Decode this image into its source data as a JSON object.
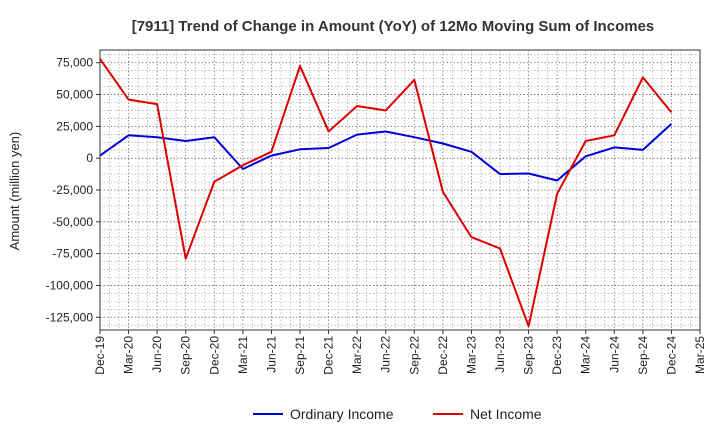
{
  "chart_data": {
    "type": "line",
    "title": "[7911]  Trend of Change in Amount (YoY) of 12Mo Moving Sum of Incomes",
    "xlabel": "",
    "ylabel": "Amount (million yen)",
    "ylim": [
      -135000,
      85000
    ],
    "yticks": [
      75000,
      50000,
      25000,
      0,
      -25000,
      -50000,
      -75000,
      -100000,
      -125000
    ],
    "ytick_labels": [
      "75,000",
      "50,000",
      "25,000",
      "0",
      "-25,000",
      "-50,000",
      "-75,000",
      "-100,000",
      "-125,000"
    ],
    "categories": [
      "Dec-19",
      "Mar-20",
      "Jun-20",
      "Sep-20",
      "Dec-20",
      "Mar-21",
      "Jun-21",
      "Sep-21",
      "Dec-21",
      "Mar-22",
      "Jun-22",
      "Sep-22",
      "Dec-22",
      "Mar-23",
      "Jun-23",
      "Sep-23",
      "Dec-23",
      "Mar-24",
      "Jun-24",
      "Sep-24",
      "Dec-24",
      "Mar-25"
    ],
    "grid": true,
    "legend_position": "bottom",
    "series": [
      {
        "name": "Ordinary Income",
        "color": "#0000dd",
        "values": [
          2000,
          18000,
          16500,
          13500,
          16500,
          -8500,
          2000,
          7000,
          8000,
          18500,
          21000,
          16500,
          11500,
          5000,
          -12500,
          -12000,
          -17500,
          1500,
          8500,
          6500,
          27000,
          null
        ]
      },
      {
        "name": "Net Income",
        "color": "#dd0000",
        "values": [
          78000,
          46000,
          42500,
          -79000,
          -18500,
          -5500,
          5000,
          72500,
          21000,
          41000,
          37500,
          61500,
          -26500,
          -62000,
          -71000,
          -132000,
          -28000,
          13500,
          18000,
          63500,
          36000,
          null
        ]
      }
    ]
  }
}
